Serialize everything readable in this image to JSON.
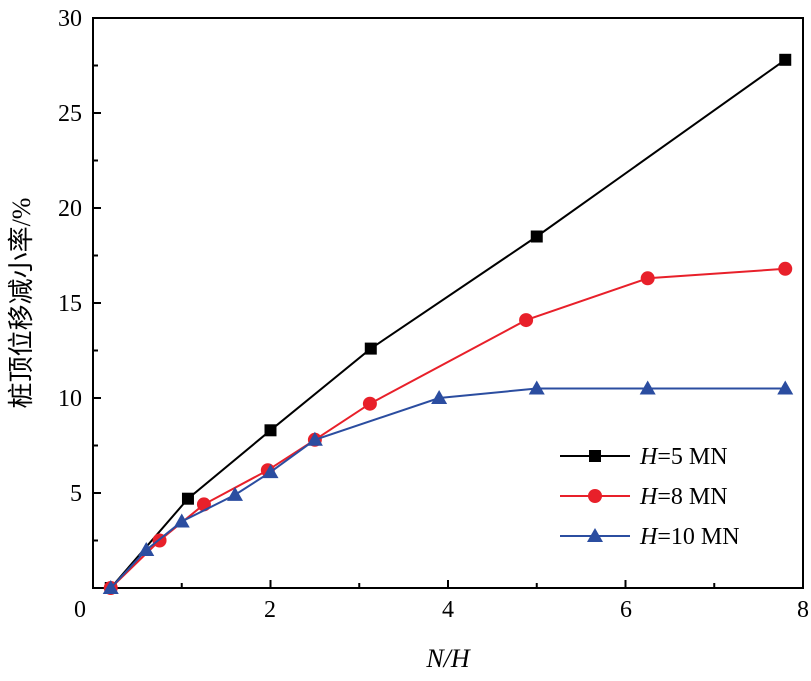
{
  "chart_data": {
    "type": "line",
    "title": "",
    "xlabel": "N/H",
    "ylabel": "桩顶位移减小率/%",
    "xlim": [
      0,
      8
    ],
    "ylim": [
      0,
      30
    ],
    "xticks": [
      "0",
      "2",
      "4",
      "6",
      "8"
    ],
    "yticks": [
      "5",
      "10",
      "15",
      "20",
      "25",
      "30"
    ],
    "grid": false,
    "legend_position": "bottom-right",
    "series": [
      {
        "name": "H=5 MN",
        "name_var": "H",
        "name_rest": "=5 MN",
        "color": "#000000",
        "marker": "square",
        "x": [
          0.2,
          1.07,
          2.0,
          3.13,
          5.0,
          7.8
        ],
        "y": [
          0.0,
          4.7,
          8.3,
          12.6,
          18.5,
          27.8
        ]
      },
      {
        "name": "H=8 MN",
        "name_var": "H",
        "name_rest": "=8 MN",
        "color": "#e8202a",
        "marker": "circle",
        "x": [
          0.2,
          0.75,
          1.25,
          1.97,
          2.5,
          3.12,
          4.88,
          6.25,
          7.8
        ],
        "y": [
          0.0,
          2.5,
          4.4,
          6.2,
          7.8,
          9.7,
          14.1,
          16.3,
          16.8
        ]
      },
      {
        "name": "H=10 MN",
        "name_var": "H",
        "name_rest": "=10 MN",
        "color": "#2b4da0",
        "marker": "triangle",
        "x": [
          0.2,
          0.6,
          1.0,
          1.6,
          2.0,
          2.5,
          3.9,
          5.0,
          6.25,
          7.8
        ],
        "y": [
          0.0,
          2.0,
          3.5,
          4.9,
          6.1,
          7.8,
          10.0,
          10.5,
          10.5,
          10.5
        ]
      }
    ]
  }
}
